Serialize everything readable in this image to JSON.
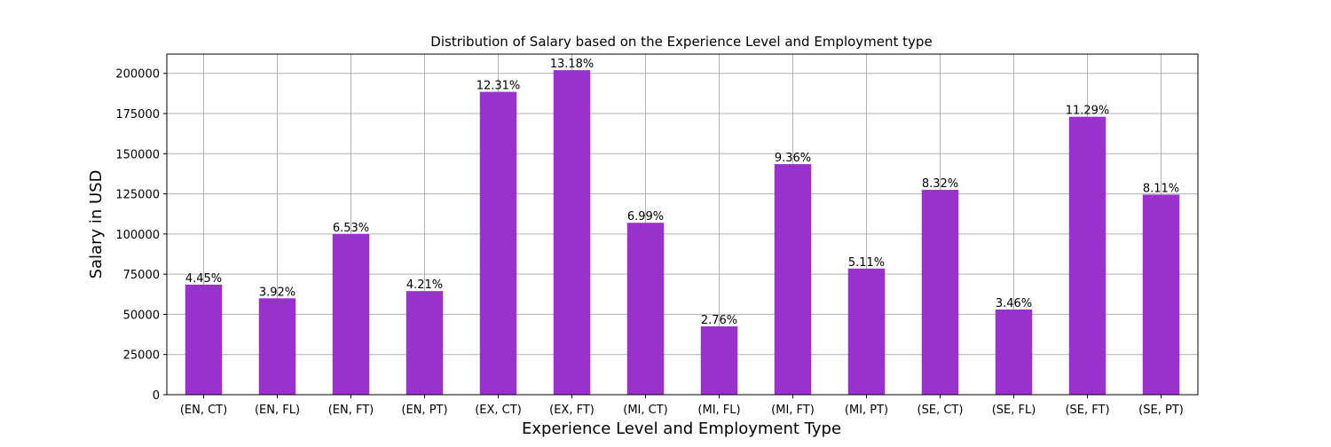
{
  "chart_data": {
    "type": "bar",
    "title": "Distribution of Salary based on the Experience Level and Employment type",
    "xlabel": "Experience Level and Employment Type",
    "ylabel": "Salary in USD",
    "categories": [
      "(EN, CT)",
      "(EN, FL)",
      "(EN, FT)",
      "(EN, PT)",
      "(EX, CT)",
      "(EX, FT)",
      "(MI, CT)",
      "(MI, FL)",
      "(MI, FT)",
      "(MI, PT)",
      "(SE, CT)",
      "(SE, FL)",
      "(SE, FT)",
      "(SE, PT)"
    ],
    "values": [
      68500,
      60000,
      100000,
      64500,
      188500,
      202000,
      107000,
      42500,
      143500,
      78500,
      127500,
      53000,
      173000,
      124500
    ],
    "data_labels": [
      "4.45%",
      "3.92%",
      "6.53%",
      "4.21%",
      "12.31%",
      "13.18%",
      "6.99%",
      "2.76%",
      "9.36%",
      "5.11%",
      "8.32%",
      "3.46%",
      "11.29%",
      "8.11%"
    ],
    "yticks": [
      0,
      25000,
      50000,
      75000,
      100000,
      125000,
      150000,
      175000,
      200000
    ],
    "ylim": [
      0,
      212000
    ],
    "grid": true,
    "bar_color": "#9932cc",
    "grid_color": "#b0b0b0"
  }
}
